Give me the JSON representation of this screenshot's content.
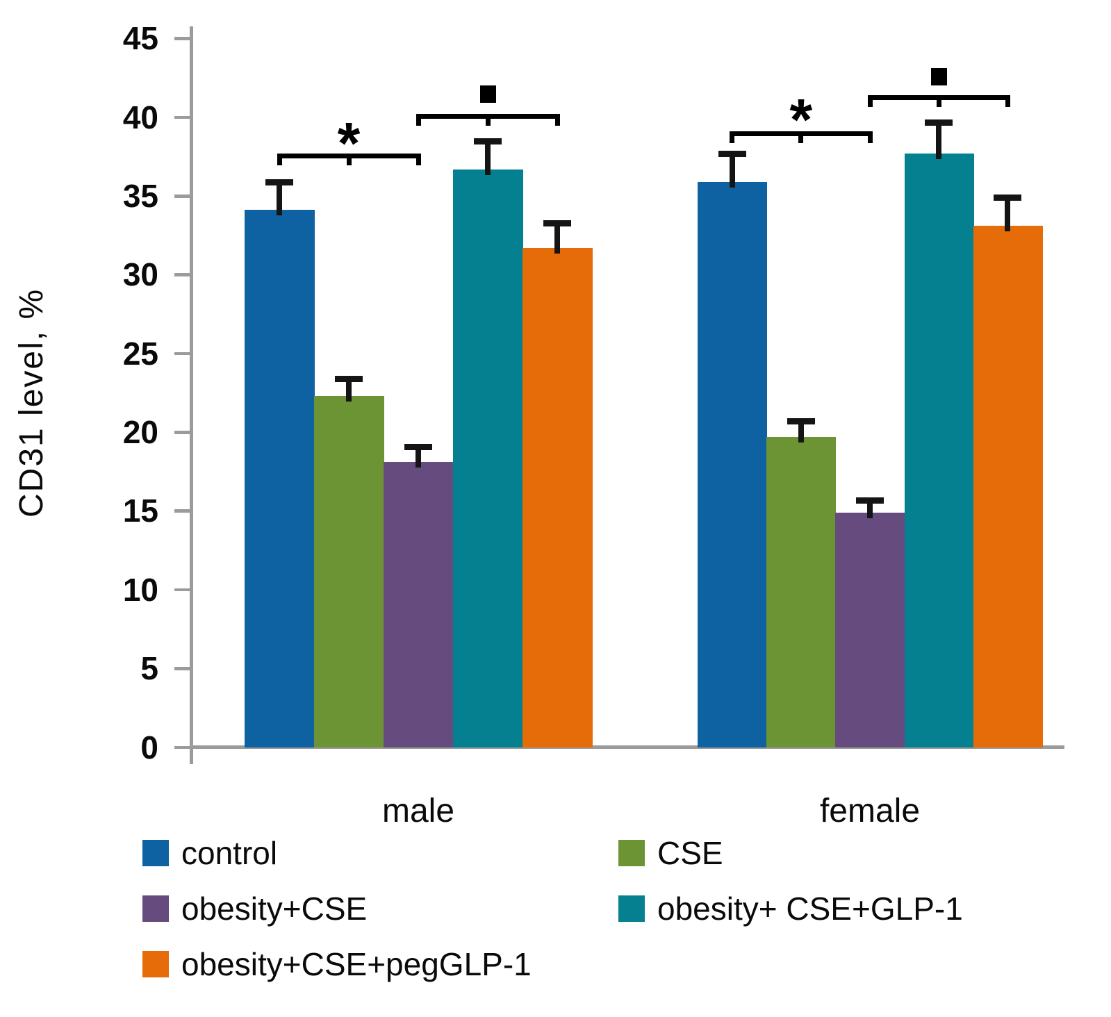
{
  "chart_data": {
    "type": "bar",
    "title": "",
    "xlabel": "",
    "ylabel": "CD31 level,  %",
    "ylim": [
      0,
      45
    ],
    "yticks": [
      45,
      40,
      35,
      30,
      25,
      20,
      15,
      10,
      5,
      0
    ],
    "gridlines": false,
    "legend_position": "bottom",
    "categories": [
      "male",
      "female"
    ],
    "series": [
      {
        "name": "control",
        "color": "#0f62a1",
        "values": [
          34.1,
          35.9
        ],
        "errors": [
          1.8,
          1.8
        ]
      },
      {
        "name": "CSE",
        "color": "#6c9434",
        "values": [
          22.3,
          19.7
        ],
        "errors": [
          1.1,
          1.0
        ]
      },
      {
        "name": "obesity+CSE",
        "color": "#654b7e",
        "values": [
          18.1,
          14.9
        ],
        "errors": [
          1.0,
          0.8
        ]
      },
      {
        "name": "obesity+ CSE+GLP-1",
        "color": "#048090",
        "values": [
          36.7,
          37.7
        ],
        "errors": [
          1.8,
          2.0
        ]
      },
      {
        "name": "obesity+CSE+pegGLP-1",
        "color": "#e66c09",
        "values": [
          31.7,
          33.1
        ],
        "errors": [
          1.6,
          1.8
        ]
      }
    ],
    "annotations": [
      {
        "group": 0,
        "symbol": "*",
        "from_series": 0,
        "to_series": 2,
        "line_value": 37.7,
        "symbol_value": 38.9
      },
      {
        "group": 0,
        "symbol": "▪",
        "from_series": 2,
        "to_series": 4,
        "line_value": 40.2,
        "symbol_value": 41.5
      },
      {
        "group": 1,
        "symbol": "*",
        "from_series": 0,
        "to_series": 2,
        "line_value": 39.1,
        "symbol_value": 40.4
      },
      {
        "group": 1,
        "symbol": "▪",
        "from_series": 2,
        "to_series": 4,
        "line_value": 41.4,
        "symbol_value": 42.6
      }
    ],
    "axis_color": "#9b9b9b",
    "error_bar_color": "#141414",
    "annotation_color": "#000000"
  }
}
